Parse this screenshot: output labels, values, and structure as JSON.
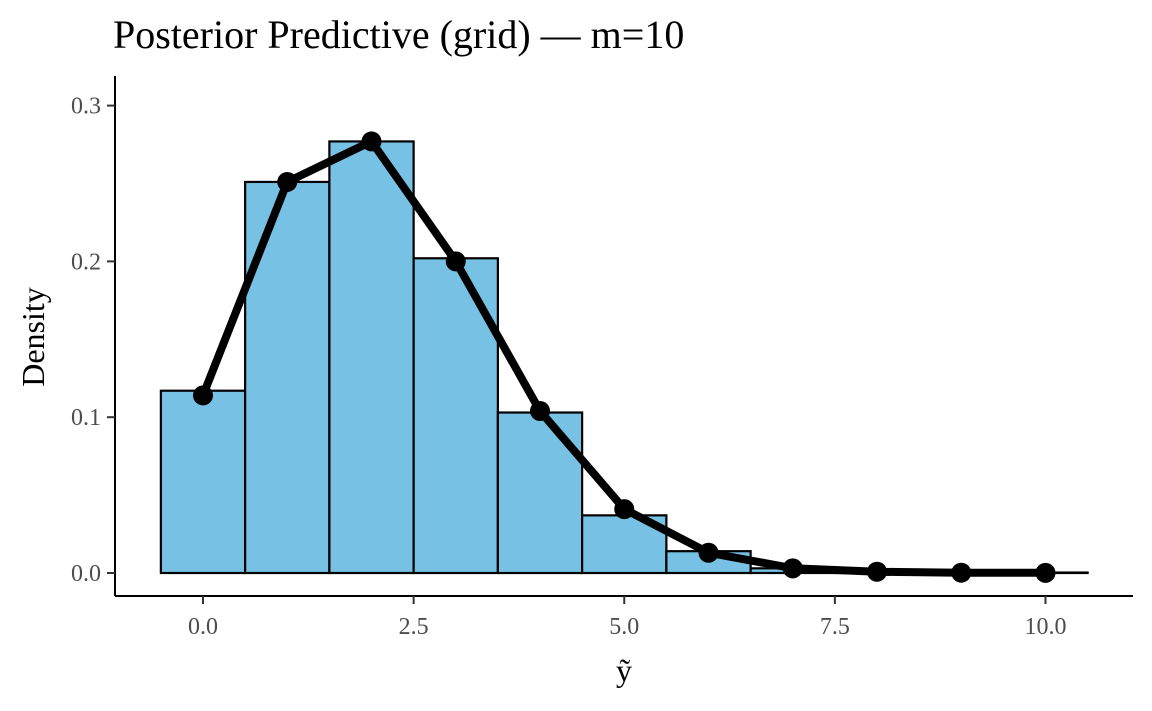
{
  "chart_data": {
    "type": "bar",
    "title": "Posterior Predictive (grid) — m=10",
    "xlabel": "ỹ",
    "ylabel": "Density",
    "xlim": [
      -0.5,
      10.5
    ],
    "ylim": [
      0,
      0.3
    ],
    "x_ticks": [
      "0.0",
      "2.5",
      "5.0",
      "7.5",
      "10.0"
    ],
    "x_tick_values": [
      0,
      2.5,
      5,
      7.5,
      10
    ],
    "y_ticks": [
      "0.0",
      "0.1",
      "0.2",
      "0.3"
    ],
    "y_tick_values": [
      0,
      0.1,
      0.2,
      0.3
    ],
    "grid": false,
    "series": [
      {
        "kind": "histogram",
        "x": [
          0,
          1,
          2,
          3,
          4,
          5,
          6,
          7,
          8,
          9,
          10
        ],
        "values": [
          0.117,
          0.251,
          0.277,
          0.202,
          0.103,
          0.037,
          0.014,
          0.003,
          0.001,
          0.0005,
          0.0003
        ],
        "fill": "#77c1e4",
        "stroke": "#000000"
      },
      {
        "kind": "line+points",
        "x": [
          0,
          1,
          2,
          3,
          4,
          5,
          6,
          7,
          8,
          9,
          10
        ],
        "values": [
          0.114,
          0.251,
          0.277,
          0.2,
          0.104,
          0.041,
          0.013,
          0.003,
          0.0008,
          0.0002,
          0.0001
        ],
        "color": "#000000"
      }
    ]
  }
}
